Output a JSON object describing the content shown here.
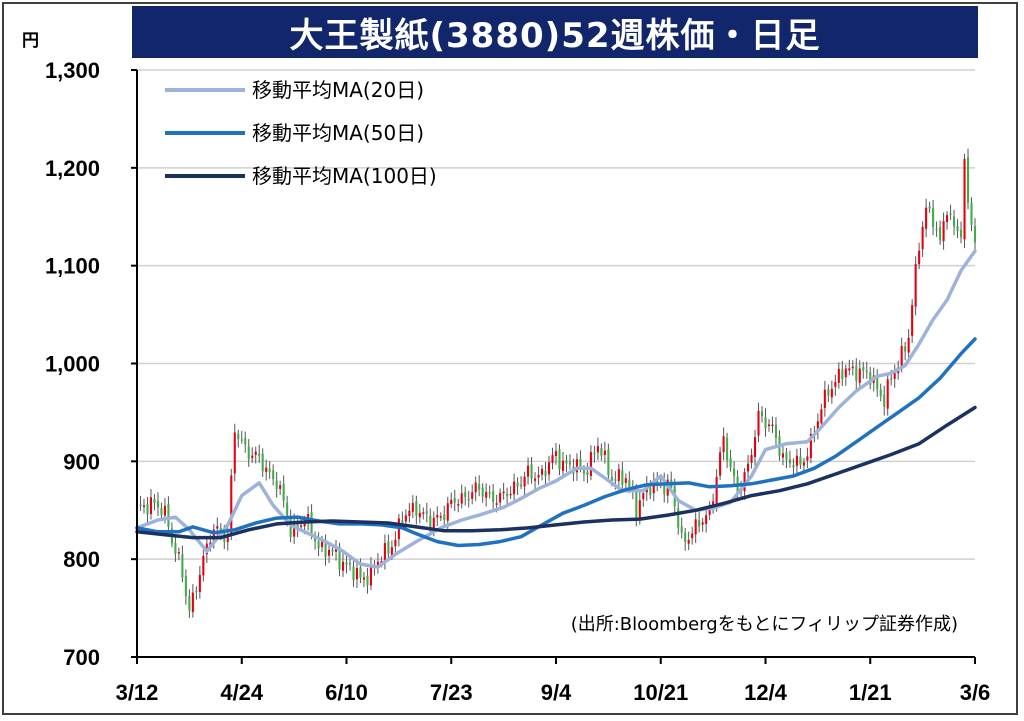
{
  "header": {
    "title": "大王製紙(3880)52週株価・日足",
    "unit": "円"
  },
  "source": "(出所:Bloombergをもとにフィリップ証券作成)",
  "colors": {
    "title_bg": "#12276b",
    "up_candle": "#e60012",
    "down_candle": "#3fae49",
    "ma20": "#9db3d9",
    "ma50": "#1f72c0",
    "ma100": "#1b3160",
    "grid": "#d0d0d0"
  },
  "chart_data": {
    "type": "line",
    "chart_kind": "candlestick with moving averages",
    "ylim": [
      700,
      1300
    ],
    "y_ticks": [
      "700",
      "800",
      "900",
      "1,000",
      "1,100",
      "1,200",
      "1,300"
    ],
    "y_tick_values": [
      700,
      800,
      900,
      1000,
      1100,
      1200,
      1300
    ],
    "x_ticks": [
      "3/12",
      "4/24",
      "6/10",
      "7/23",
      "9/4",
      "10/21",
      "12/4",
      "1/21",
      "3/6"
    ],
    "x_tick_index": [
      0,
      30,
      60,
      90,
      120,
      150,
      180,
      210,
      240
    ],
    "grid": true,
    "legend_position": "top-left",
    "legend": [
      "移動平均MA(20日)",
      "移動平均MA(50日)",
      "移動平均MA(100日)"
    ],
    "close_anchors": [
      [
        0,
        848
      ],
      [
        4,
        860
      ],
      [
        8,
        845
      ],
      [
        12,
        800
      ],
      [
        15,
        745
      ],
      [
        18,
        790
      ],
      [
        22,
        830
      ],
      [
        26,
        825
      ],
      [
        28,
        930
      ],
      [
        31,
        915
      ],
      [
        35,
        900
      ],
      [
        40,
        880
      ],
      [
        44,
        830
      ],
      [
        48,
        840
      ],
      [
        52,
        815
      ],
      [
        56,
        805
      ],
      [
        60,
        795
      ],
      [
        64,
        778
      ],
      [
        68,
        792
      ],
      [
        72,
        810
      ],
      [
        76,
        840
      ],
      [
        80,
        855
      ],
      [
        84,
        835
      ],
      [
        88,
        850
      ],
      [
        92,
        860
      ],
      [
        96,
        870
      ],
      [
        100,
        868
      ],
      [
        104,
        860
      ],
      [
        108,
        875
      ],
      [
        112,
        885
      ],
      [
        116,
        888
      ],
      [
        120,
        905
      ],
      [
        124,
        895
      ],
      [
        128,
        890
      ],
      [
        132,
        915
      ],
      [
        136,
        885
      ],
      [
        140,
        880
      ],
      [
        143,
        855
      ],
      [
        146,
        870
      ],
      [
        150,
        880
      ],
      [
        153,
        870
      ],
      [
        156,
        820
      ],
      [
        160,
        830
      ],
      [
        164,
        850
      ],
      [
        168,
        920
      ],
      [
        172,
        870
      ],
      [
        175,
        890
      ],
      [
        178,
        950
      ],
      [
        182,
        930
      ],
      [
        186,
        900
      ],
      [
        190,
        895
      ],
      [
        194,
        930
      ],
      [
        198,
        975
      ],
      [
        202,
        990
      ],
      [
        206,
        995
      ],
      [
        210,
        985
      ],
      [
        214,
        965
      ],
      [
        218,
        1000
      ],
      [
        221,
        1030
      ],
      [
        224,
        1120
      ],
      [
        226,
        1160
      ],
      [
        228,
        1150
      ],
      [
        230,
        1120
      ],
      [
        232,
        1160
      ],
      [
        234,
        1140
      ],
      [
        236,
        1135
      ],
      [
        237,
        1200
      ],
      [
        238,
        1160
      ],
      [
        240,
        1130
      ]
    ],
    "series": [
      {
        "name": "移動平均MA(20日)",
        "x": [
          0,
          6,
          11,
          15,
          20,
          26,
          30,
          35,
          39,
          44,
          48,
          54,
          59,
          64,
          69,
          74,
          80,
          87,
          93,
          98,
          105,
          110,
          115,
          120,
          126,
          130,
          134,
          139,
          145,
          150,
          155,
          160,
          165,
          170,
          176,
          180,
          186,
          192,
          196,
          201,
          206,
          212,
          216,
          220,
          224,
          228,
          232,
          236,
          240
        ],
        "values": [
          832,
          840,
          843,
          830,
          808,
          835,
          865,
          878,
          855,
          835,
          828,
          818,
          808,
          795,
          792,
          805,
          818,
          832,
          840,
          845,
          853,
          862,
          872,
          880,
          893,
          893,
          883,
          870,
          870,
          885,
          860,
          850,
          852,
          858,
          885,
          912,
          918,
          920,
          935,
          955,
          972,
          987,
          990,
          998,
          1020,
          1045,
          1065,
          1095,
          1115
        ]
      },
      {
        "name": "移動平均MA(50日)",
        "x": [
          0,
          6,
          12,
          16,
          22,
          28,
          34,
          40,
          46,
          52,
          58,
          64,
          70,
          76,
          80,
          86,
          92,
          98,
          104,
          110,
          116,
          122,
          128,
          134,
          140,
          146,
          152,
          158,
          164,
          170,
          176,
          182,
          188,
          194,
          200,
          206,
          212,
          218,
          224,
          230,
          236,
          240
        ],
        "values": [
          832,
          828,
          828,
          833,
          827,
          830,
          837,
          842,
          843,
          839,
          836,
          836,
          835,
          832,
          826,
          818,
          814,
          815,
          818,
          823,
          835,
          847,
          855,
          864,
          871,
          876,
          877,
          878,
          874,
          875,
          877,
          881,
          885,
          893,
          905,
          920,
          935,
          950,
          965,
          985,
          1010,
          1025
        ]
      },
      {
        "name": "移動平均MA(100日)",
        "x": [
          0,
          8,
          16,
          24,
          32,
          40,
          48,
          56,
          64,
          72,
          80,
          88,
          96,
          104,
          112,
          120,
          128,
          136,
          144,
          152,
          160,
          168,
          176,
          184,
          192,
          200,
          208,
          216,
          224,
          232,
          240
        ],
        "values": [
          828,
          825,
          822,
          822,
          830,
          836,
          838,
          839,
          838,
          837,
          833,
          829,
          829,
          830,
          832,
          835,
          838,
          840,
          841,
          845,
          850,
          857,
          865,
          870,
          877,
          887,
          897,
          907,
          918,
          937,
          955
        ]
      }
    ]
  }
}
